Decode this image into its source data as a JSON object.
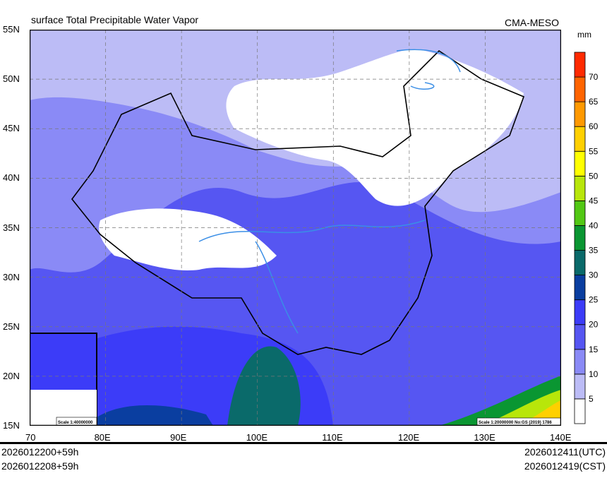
{
  "title": "surface Total Precipitable Water Vapor",
  "source": "CMA-MESO",
  "colorbar": {
    "unit": "mm",
    "levels": [
      5,
      10,
      15,
      20,
      25,
      30,
      35,
      40,
      45,
      50,
      55,
      60,
      65,
      70
    ],
    "colors": [
      "#ffffff",
      "#bcbcf6",
      "#8a8af6",
      "#5656f2",
      "#3c3cf8",
      "#0a3ea0",
      "#0a6a6a",
      "#0a9632",
      "#52c814",
      "#b8e60a",
      "#ffff00",
      "#ffd000",
      "#ff9900",
      "#ff6400",
      "#ff2a00"
    ]
  },
  "lat_labels": [
    "55N",
    "50N",
    "45N",
    "40N",
    "35N",
    "30N",
    "25N",
    "20N",
    "15N"
  ],
  "lon_labels": [
    "70",
    "80E",
    "90E",
    "100E",
    "110E",
    "120E",
    "130E",
    "140E"
  ],
  "inset_scale": "Scale 1:40000000",
  "main_scale": "Scale 1:20000000 No:GS (2019) 1786",
  "footer": {
    "init_utc": "2026012200+59h",
    "init_cst": "2026012208+59h",
    "valid_utc": "2026012411(UTC)",
    "valid_cst": "2026012419(CST)"
  }
}
